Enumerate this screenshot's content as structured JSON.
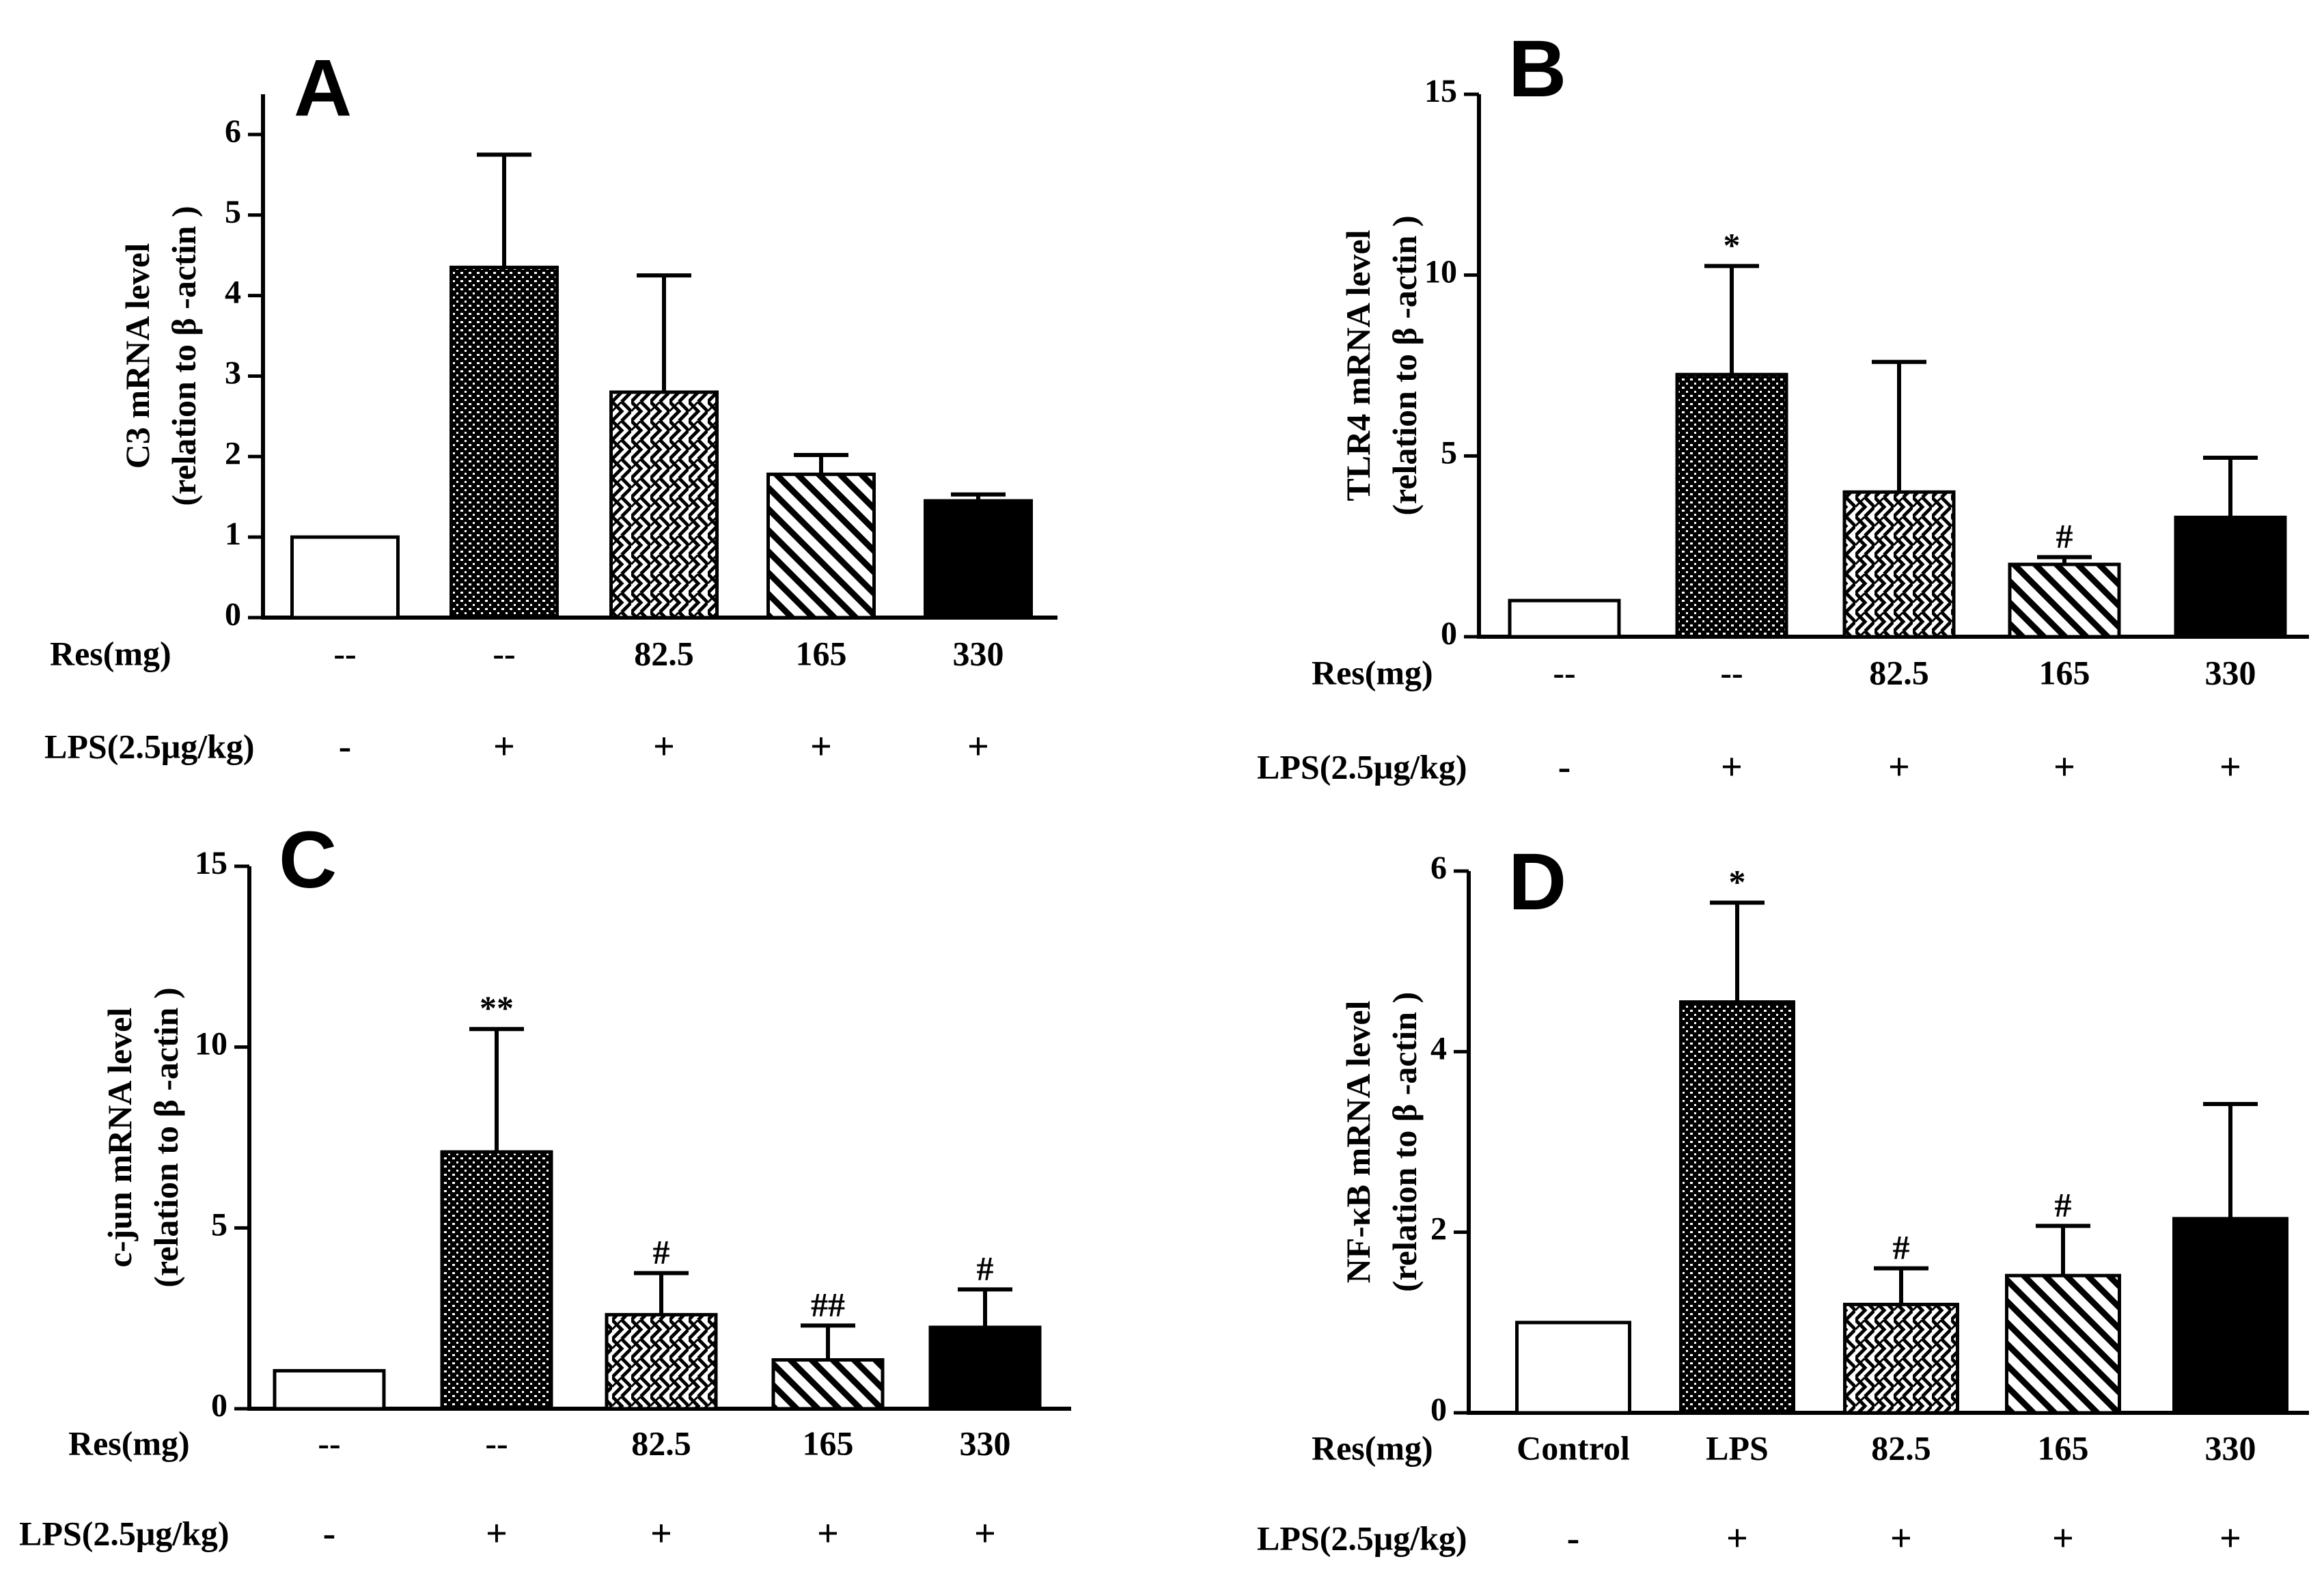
{
  "figure": {
    "background": "#ffffff",
    "ink": "#000000",
    "pattern_names": [
      "open",
      "dense-grid",
      "zigzag-checker",
      "diagonal-hatch",
      "solid-black"
    ]
  },
  "chart_data": [
    {
      "panel": "A",
      "type": "bar",
      "ylabel_line1": "C3 mRNA level",
      "ylabel_line2": "(relation to β -actin )",
      "ylim": [
        0,
        6.5
      ],
      "yticks": [
        0,
        1,
        2,
        3,
        4,
        5,
        6
      ],
      "categories": [
        "--",
        "--",
        "82.5",
        "165",
        "330"
      ],
      "values": [
        1.0,
        4.35,
        2.8,
        1.78,
        1.45
      ],
      "errors": [
        0,
        1.4,
        1.45,
        0.24,
        0.08
      ],
      "significance": [
        "",
        "",
        "",
        "",
        ""
      ],
      "res_label": "Res(mg)",
      "lps_label": "LPS(2.5μg/kg)",
      "lps_values": [
        "-",
        "+",
        "+",
        "+",
        "+"
      ]
    },
    {
      "panel": "B",
      "type": "bar",
      "ylabel_line1": "TLR4 mRNA level",
      "ylabel_line2": "(relation to β -actin )",
      "ylim": [
        0,
        15
      ],
      "yticks": [
        0,
        5,
        10,
        15
      ],
      "categories": [
        "--",
        "--",
        "82.5",
        "165",
        "330"
      ],
      "values": [
        1.0,
        7.25,
        4.0,
        2.0,
        3.3
      ],
      "errors": [
        0,
        3.0,
        3.6,
        0.2,
        1.65
      ],
      "significance": [
        "",
        "*",
        "",
        "#",
        ""
      ],
      "res_label": "Res(mg)",
      "lps_label": "LPS(2.5μg/kg)",
      "lps_values": [
        "-",
        "+",
        "+",
        "+",
        "+"
      ]
    },
    {
      "panel": "C",
      "type": "bar",
      "ylabel_line1": "c-jun mRNA level",
      "ylabel_line2": "(relation to β -actin )",
      "ylim": [
        0,
        15
      ],
      "yticks": [
        0,
        5,
        10,
        15
      ],
      "categories": [
        "--",
        "--",
        "82.5",
        "165",
        "330"
      ],
      "values": [
        1.05,
        7.1,
        2.6,
        1.35,
        2.25
      ],
      "errors": [
        0,
        3.4,
        1.15,
        0.95,
        1.05
      ],
      "significance": [
        "",
        "**",
        "#",
        "##",
        "#"
      ],
      "res_label": "Res(mg)",
      "lps_label": "LPS(2.5μg/kg)",
      "lps_values": [
        "-",
        "+",
        "+",
        "+",
        "+"
      ]
    },
    {
      "panel": "D",
      "type": "bar",
      "ylabel_line1": "NF-κB mRNA level",
      "ylabel_line2": "(relation to β -actin )",
      "ylim": [
        0,
        6
      ],
      "yticks": [
        0,
        2,
        4,
        6
      ],
      "categories": [
        "Control",
        "LPS",
        "82.5",
        "165",
        "330"
      ],
      "values": [
        1.0,
        4.55,
        1.2,
        1.52,
        2.15
      ],
      "errors": [
        0,
        1.1,
        0.4,
        0.55,
        1.27
      ],
      "significance": [
        "",
        "*",
        "#",
        "#",
        ""
      ],
      "res_label": "Res(mg)",
      "lps_label": "LPS(2.5μg/kg)",
      "lps_values": [
        "-",
        "+",
        "+",
        "+",
        "+"
      ]
    }
  ]
}
